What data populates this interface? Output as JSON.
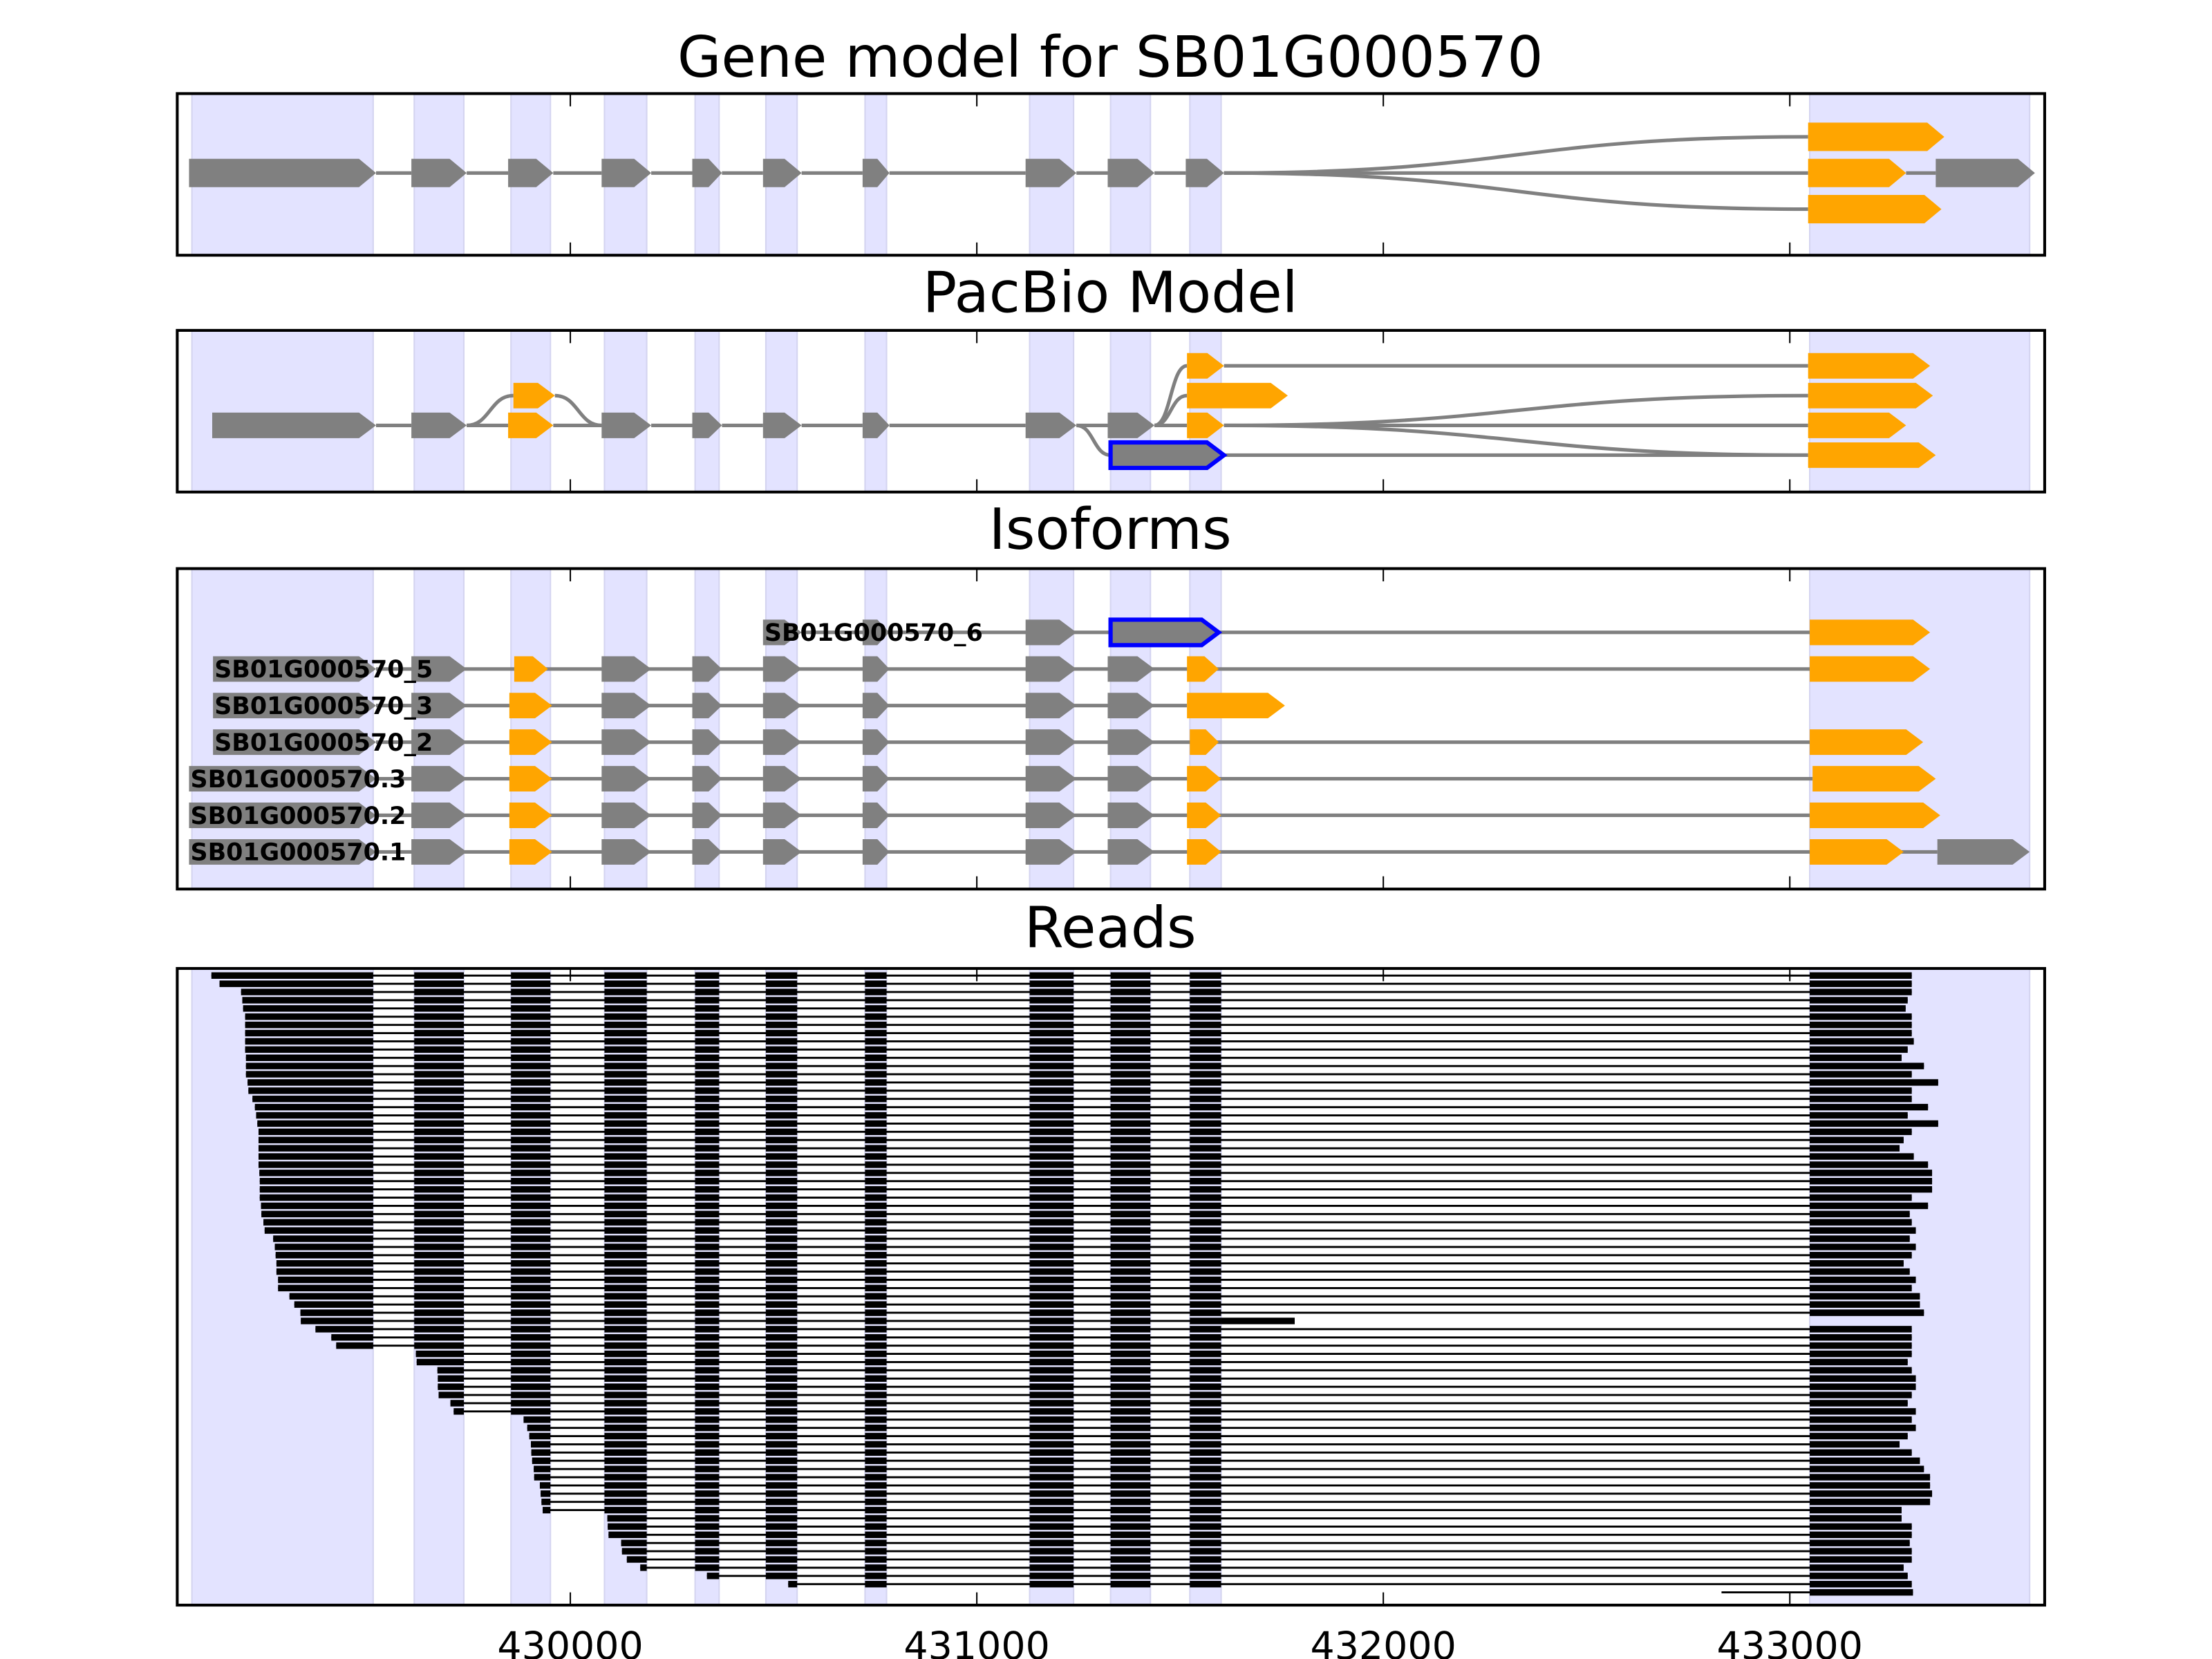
{
  "chart_data": {
    "type": "gene-track",
    "titles": {
      "gene_model": "Gene model for SB01G000570",
      "pacbio": "PacBio Model",
      "isoforms": "Isoforms",
      "reads": "Reads"
    },
    "xlim": [
      429033,
      433627
    ],
    "ticks": [
      430000,
      431000,
      432000,
      433000
    ],
    "tick_labels": [
      "430000",
      "431000",
      "432000",
      "433000"
    ],
    "colors": {
      "g": "#808080",
      "o": "#ffa500",
      "b": "#0000ff",
      "band": "#e3e3ff",
      "band_edge": "#d4d4f0",
      "read": "#000000",
      "intron": "#808080"
    },
    "exon_bands": [
      [
        429069,
        429515
      ],
      [
        429616,
        429738
      ],
      [
        429854,
        429951
      ],
      [
        430084,
        430188
      ],
      [
        430307,
        430366
      ],
      [
        430481,
        430558
      ],
      [
        430725,
        430778
      ],
      [
        431130,
        431238
      ],
      [
        431329,
        431427
      ],
      [
        431524,
        431601
      ],
      [
        433049,
        433590
      ]
    ],
    "gene_model": {
      "nodes": [
        [
          429062,
          429522,
          "g",
          0
        ],
        [
          429609,
          429745,
          "g",
          0
        ],
        [
          429847,
          429958,
          "g",
          0
        ],
        [
          430077,
          430199,
          "g",
          0
        ],
        [
          430300,
          430373,
          "g",
          0
        ],
        [
          430474,
          430569,
          "g",
          0
        ],
        [
          430719,
          430785,
          "g",
          0
        ],
        [
          431120,
          431245,
          "g",
          0
        ],
        [
          431322,
          431437,
          "g",
          0
        ],
        [
          431514,
          431608,
          "g",
          0
        ],
        [
          433045,
          433380,
          "o",
          -1
        ],
        [
          433045,
          433286,
          "o",
          0
        ],
        [
          433045,
          433373,
          "o",
          1
        ],
        [
          433359,
          433603,
          "g",
          0
        ]
      ],
      "edges": [
        [
          0,
          1
        ],
        [
          1,
          2
        ],
        [
          2,
          3
        ],
        [
          3,
          4
        ],
        [
          4,
          5
        ],
        [
          5,
          6
        ],
        [
          6,
          7
        ],
        [
          7,
          8
        ],
        [
          8,
          9
        ],
        [
          9,
          10
        ],
        [
          9,
          11
        ],
        [
          9,
          12
        ],
        [
          11,
          13
        ]
      ]
    },
    "pacbio": {
      "nodes": [
        [
          429119,
          429522,
          "g",
          2
        ],
        [
          429609,
          429745,
          "g",
          2
        ],
        [
          429860,
          429962,
          "o",
          1
        ],
        [
          429847,
          429958,
          "o",
          2
        ],
        [
          430077,
          430199,
          "g",
          2
        ],
        [
          430300,
          430373,
          "g",
          2
        ],
        [
          430474,
          430569,
          "g",
          2
        ],
        [
          430719,
          430785,
          "g",
          2
        ],
        [
          431120,
          431245,
          "g",
          2
        ],
        [
          431322,
          431437,
          "g",
          2
        ],
        [
          431329,
          431608,
          "b",
          3
        ],
        [
          431517,
          431608,
          "o",
          0
        ],
        [
          431517,
          431765,
          "o",
          1
        ],
        [
          431517,
          431608,
          "o",
          2
        ],
        [
          433045,
          433345,
          "o",
          0
        ],
        [
          433045,
          433352,
          "o",
          1
        ],
        [
          433045,
          433286,
          "o",
          2
        ],
        [
          433045,
          433359,
          "o",
          3
        ]
      ],
      "edges": [
        [
          0,
          1
        ],
        [
          1,
          2
        ],
        [
          1,
          3
        ],
        [
          2,
          4
        ],
        [
          3,
          4
        ],
        [
          4,
          5
        ],
        [
          5,
          6
        ],
        [
          6,
          7
        ],
        [
          7,
          8
        ],
        [
          8,
          9
        ],
        [
          8,
          10
        ],
        [
          9,
          11
        ],
        [
          9,
          12
        ],
        [
          9,
          13
        ],
        [
          11,
          14
        ],
        [
          13,
          15
        ],
        [
          13,
          16
        ],
        [
          13,
          17
        ],
        [
          10,
          17
        ]
      ]
    },
    "isoforms": [
      {
        "name": "SB01G000570_6",
        "exons": [
          [
            430474,
            430569,
            "g"
          ],
          [
            430719,
            430785,
            "g"
          ],
          [
            431120,
            431245,
            "g"
          ],
          [
            431329,
            431595,
            "b"
          ],
          [
            433049,
            433345,
            "o"
          ]
        ]
      },
      {
        "name": "SB01G000570_5",
        "exons": [
          [
            429121,
            429522,
            "g"
          ],
          [
            429609,
            429745,
            "g"
          ],
          [
            429862,
            429945,
            "o"
          ],
          [
            430077,
            430199,
            "g"
          ],
          [
            430300,
            430373,
            "g"
          ],
          [
            430474,
            430569,
            "g"
          ],
          [
            430719,
            430785,
            "g"
          ],
          [
            431120,
            431245,
            "g"
          ],
          [
            431322,
            431437,
            "g"
          ],
          [
            431517,
            431595,
            "o"
          ],
          [
            433049,
            433345,
            "o"
          ]
        ]
      },
      {
        "name": "SB01G000570_3",
        "exons": [
          [
            429121,
            429522,
            "g"
          ],
          [
            429609,
            429745,
            "g"
          ],
          [
            429850,
            429955,
            "o"
          ],
          [
            430077,
            430199,
            "g"
          ],
          [
            430300,
            430373,
            "g"
          ],
          [
            430474,
            430569,
            "g"
          ],
          [
            430719,
            430785,
            "g"
          ],
          [
            431120,
            431245,
            "g"
          ],
          [
            431322,
            431437,
            "g"
          ],
          [
            431517,
            431758,
            "o"
          ]
        ]
      },
      {
        "name": "SB01G000570_2",
        "exons": [
          [
            429121,
            429522,
            "g"
          ],
          [
            429609,
            429745,
            "g"
          ],
          [
            429850,
            429955,
            "o"
          ],
          [
            430077,
            430199,
            "g"
          ],
          [
            430300,
            430373,
            "g"
          ],
          [
            430474,
            430569,
            "g"
          ],
          [
            430719,
            430785,
            "g"
          ],
          [
            431120,
            431245,
            "g"
          ],
          [
            431322,
            431437,
            "g"
          ],
          [
            431524,
            431595,
            "o"
          ],
          [
            433049,
            433328,
            "o"
          ]
        ]
      },
      {
        "name": "SB01G000570.3",
        "exons": [
          [
            429062,
            429522,
            "g"
          ],
          [
            429609,
            429745,
            "g"
          ],
          [
            429850,
            429955,
            "o"
          ],
          [
            430077,
            430199,
            "g"
          ],
          [
            430300,
            430373,
            "g"
          ],
          [
            430474,
            430569,
            "g"
          ],
          [
            430719,
            430785,
            "g"
          ],
          [
            431120,
            431245,
            "g"
          ],
          [
            431322,
            431437,
            "g"
          ],
          [
            431517,
            431601,
            "o"
          ],
          [
            433056,
            433359,
            "o"
          ]
        ]
      },
      {
        "name": "SB01G000570.2",
        "exons": [
          [
            429062,
            429522,
            "g"
          ],
          [
            429609,
            429745,
            "g"
          ],
          [
            429850,
            429955,
            "o"
          ],
          [
            430077,
            430199,
            "g"
          ],
          [
            430300,
            430373,
            "g"
          ],
          [
            430474,
            430569,
            "g"
          ],
          [
            430719,
            430785,
            "g"
          ],
          [
            431120,
            431245,
            "g"
          ],
          [
            431322,
            431437,
            "g"
          ],
          [
            431517,
            431601,
            "o"
          ],
          [
            433049,
            433370,
            "o"
          ]
        ]
      },
      {
        "name": "SB01G000570.1",
        "exons": [
          [
            429062,
            429522,
            "g"
          ],
          [
            429609,
            429745,
            "g"
          ],
          [
            429850,
            429955,
            "o"
          ],
          [
            430077,
            430199,
            "g"
          ],
          [
            430300,
            430373,
            "g"
          ],
          [
            430474,
            430569,
            "g"
          ],
          [
            430719,
            430785,
            "g"
          ],
          [
            431120,
            431245,
            "g"
          ],
          [
            431322,
            431437,
            "g"
          ],
          [
            431517,
            431601,
            "o"
          ],
          [
            433049,
            433280,
            "o"
          ],
          [
            433363,
            433590,
            "g"
          ]
        ]
      }
    ],
    "reads": {
      "starts": [
        429117,
        429137,
        429190,
        429193,
        429195,
        429200,
        429200,
        429200,
        429200,
        429200,
        429202,
        429202,
        429202,
        429206,
        429208,
        429218,
        429224,
        429227,
        429230,
        429233,
        429233,
        429233,
        429233,
        429233,
        429235,
        429236,
        429236,
        429236,
        429239,
        429240,
        429245,
        429248,
        429269,
        429273,
        429275,
        429277,
        429277,
        429281,
        429281,
        429309,
        429321,
        429336,
        429337,
        429373,
        429412,
        429424,
        429620,
        429622,
        429673,
        429674,
        429674,
        429676,
        429705,
        429713,
        429885,
        429894,
        429899,
        429903,
        429904,
        429906,
        429910,
        429911,
        429925,
        429927,
        429929,
        429932,
        430091,
        430092,
        430094,
        430125,
        430127,
        430139,
        430172,
        430336,
        430536,
        432832
      ],
      "ends": [
        433300,
        433300,
        433300,
        433290,
        433285,
        433300,
        433300,
        433300,
        433305,
        433290,
        433275,
        433330,
        433300,
        433365,
        433300,
        433300,
        433340,
        433290,
        433365,
        433300,
        433280,
        433270,
        433305,
        433340,
        433350,
        433350,
        433350,
        433300,
        433340,
        433295,
        433300,
        433310,
        433295,
        433310,
        433300,
        433280,
        433295,
        433310,
        433300,
        433320,
        433320,
        433330,
        431782,
        433300,
        433300,
        433300,
        433300,
        433290,
        433300,
        433310,
        433310,
        433300,
        433290,
        433310,
        433300,
        433310,
        433290,
        433270,
        433300,
        433320,
        433330,
        433345,
        433345,
        433350,
        433345,
        433275,
        433275,
        433300,
        433300,
        433295,
        433300,
        433300,
        433280,
        433290,
        433300,
        433303
      ]
    }
  }
}
